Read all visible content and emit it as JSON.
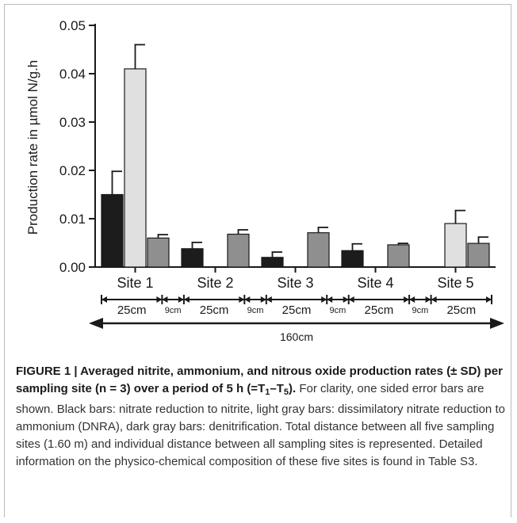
{
  "chart_data": {
    "type": "bar",
    "ylabel": "Production rate in µmol N/g.h",
    "ylim": [
      0,
      0.05
    ],
    "yticks": [
      "0.00",
      "0.01",
      "0.02",
      "0.03",
      "0.04",
      "0.05"
    ],
    "categories": [
      "Site 1",
      "Site 2",
      "Site 3",
      "Site 4",
      "Site 5"
    ],
    "series": [
      {
        "color": "#1c1c1c",
        "values": [
          0.015,
          0.0038,
          0.002,
          0.0034,
          null
        ],
        "error": [
          0.0048,
          0.0013,
          0.0011,
          0.0014,
          null
        ]
      },
      {
        "color": "#e0e0e0",
        "values": [
          0.041,
          null,
          null,
          null,
          0.009
        ],
        "error": [
          0.005,
          null,
          null,
          null,
          0.0027
        ]
      },
      {
        "color": "#8f8f8f",
        "values": [
          0.006,
          0.0068,
          0.0071,
          0.0046,
          0.0049
        ],
        "error": [
          0.0007,
          0.0009,
          0.0011,
          0.0003,
          0.0013
        ]
      }
    ],
    "legend": "none",
    "grid": false
  },
  "distance_scale": {
    "segments": [
      "25cm",
      "9cm",
      "25cm",
      "9cm",
      "25cm",
      "9cm",
      "25cm",
      "9cm",
      "25cm"
    ],
    "total": "160cm"
  },
  "caption": {
    "title": "FIGURE 1 | Averaged nitrite, ammonium, and nitrous oxide production rates (± SD) per sampling site (n = 3) over a period of 5 h (=T",
    "title_sub1": "1",
    "title_dash": "–T",
    "title_sub5": "5",
    "title_end": ").",
    "body": " For clarity, one sided error bars are shown. Black bars: nitrate reduction to nitrite, light gray bars: dissimilatory nitrate reduction to ammonium (DNRA), dark gray bars: denitrification. Total distance between all five sampling sites (1.60 m) and individual distance between all sampling sites is represented. Detailed information on the physico-chemical composition of these five sites is found in Table S3."
  }
}
